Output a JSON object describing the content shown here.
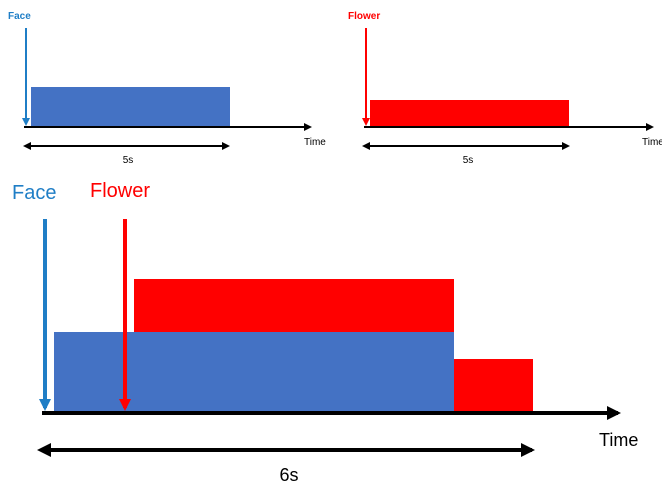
{
  "colors": {
    "face": "#4472c4",
    "face_label": "#1f7ec6",
    "flower": "#ff0000",
    "axis": "#000000"
  },
  "top_left": {
    "onset_label": "Face",
    "axis_label": "Time",
    "duration_label": "5s"
  },
  "top_right": {
    "onset_label": "Flower",
    "axis_label": "Time",
    "duration_label": "5s"
  },
  "bottom": {
    "face_label": "Face",
    "flower_label": "Flower",
    "axis_label": "Time",
    "duration_label": "6s"
  }
}
